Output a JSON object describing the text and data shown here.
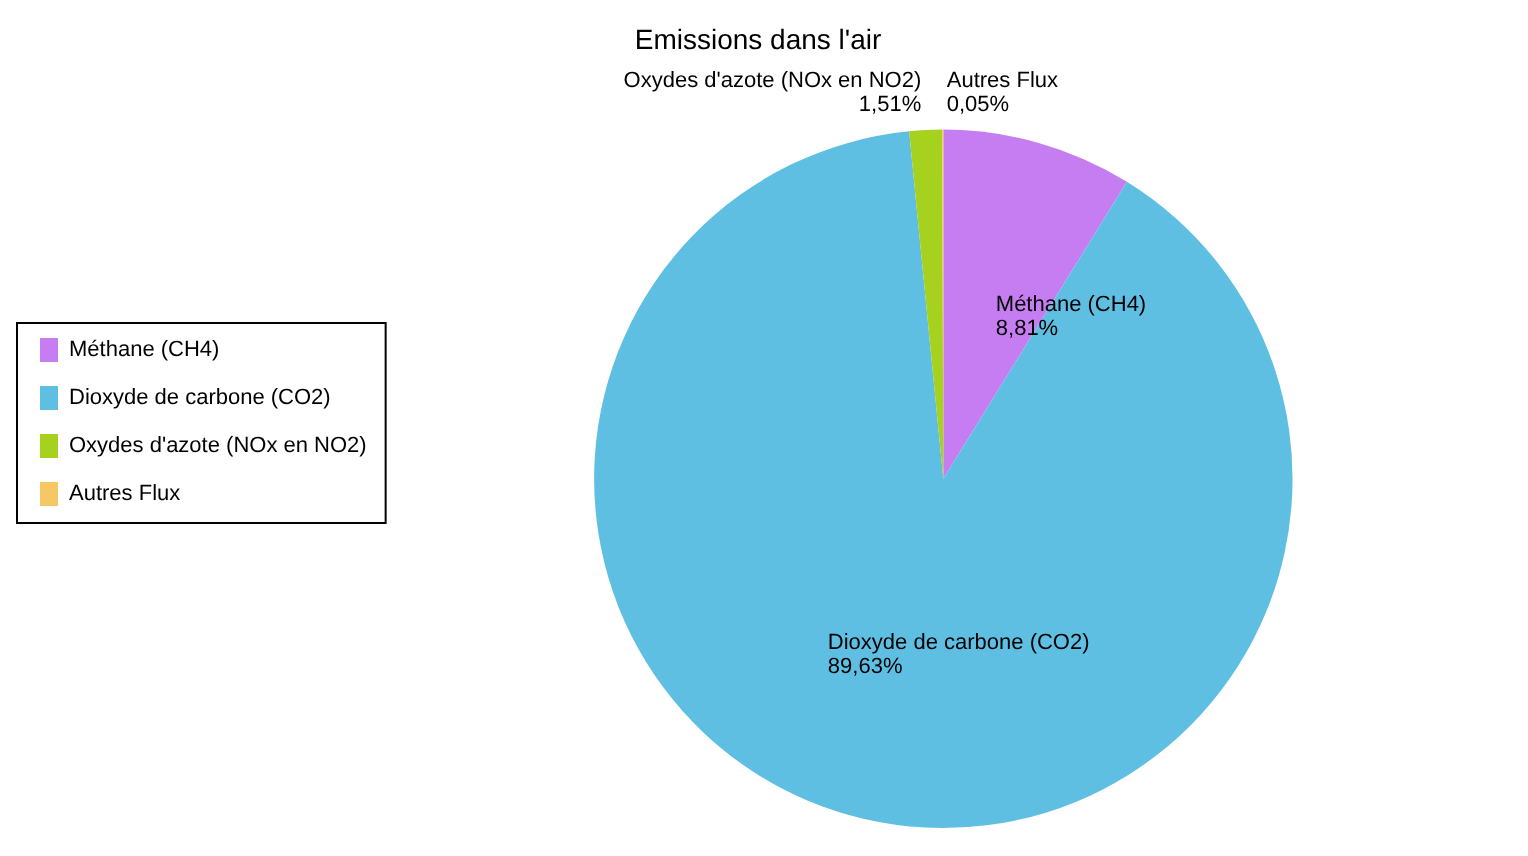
{
  "chart_data": {
    "type": "pie",
    "title": "Emissions dans l'air",
    "categories": [
      "Méthane (CH4)",
      "Dioxyde de carbone (CO2)",
      "Oxydes d'azote (NOx en NO2)",
      "Autres Flux"
    ],
    "values": [
      8.81,
      89.63,
      1.51,
      0.05
    ],
    "colors": [
      "#c77df2",
      "#5fbfe3",
      "#a6d11e",
      "#f5c864"
    ],
    "value_labels": [
      "8,81%",
      "89,63%",
      "1,51%",
      "0,05%"
    ],
    "legend": "left"
  }
}
